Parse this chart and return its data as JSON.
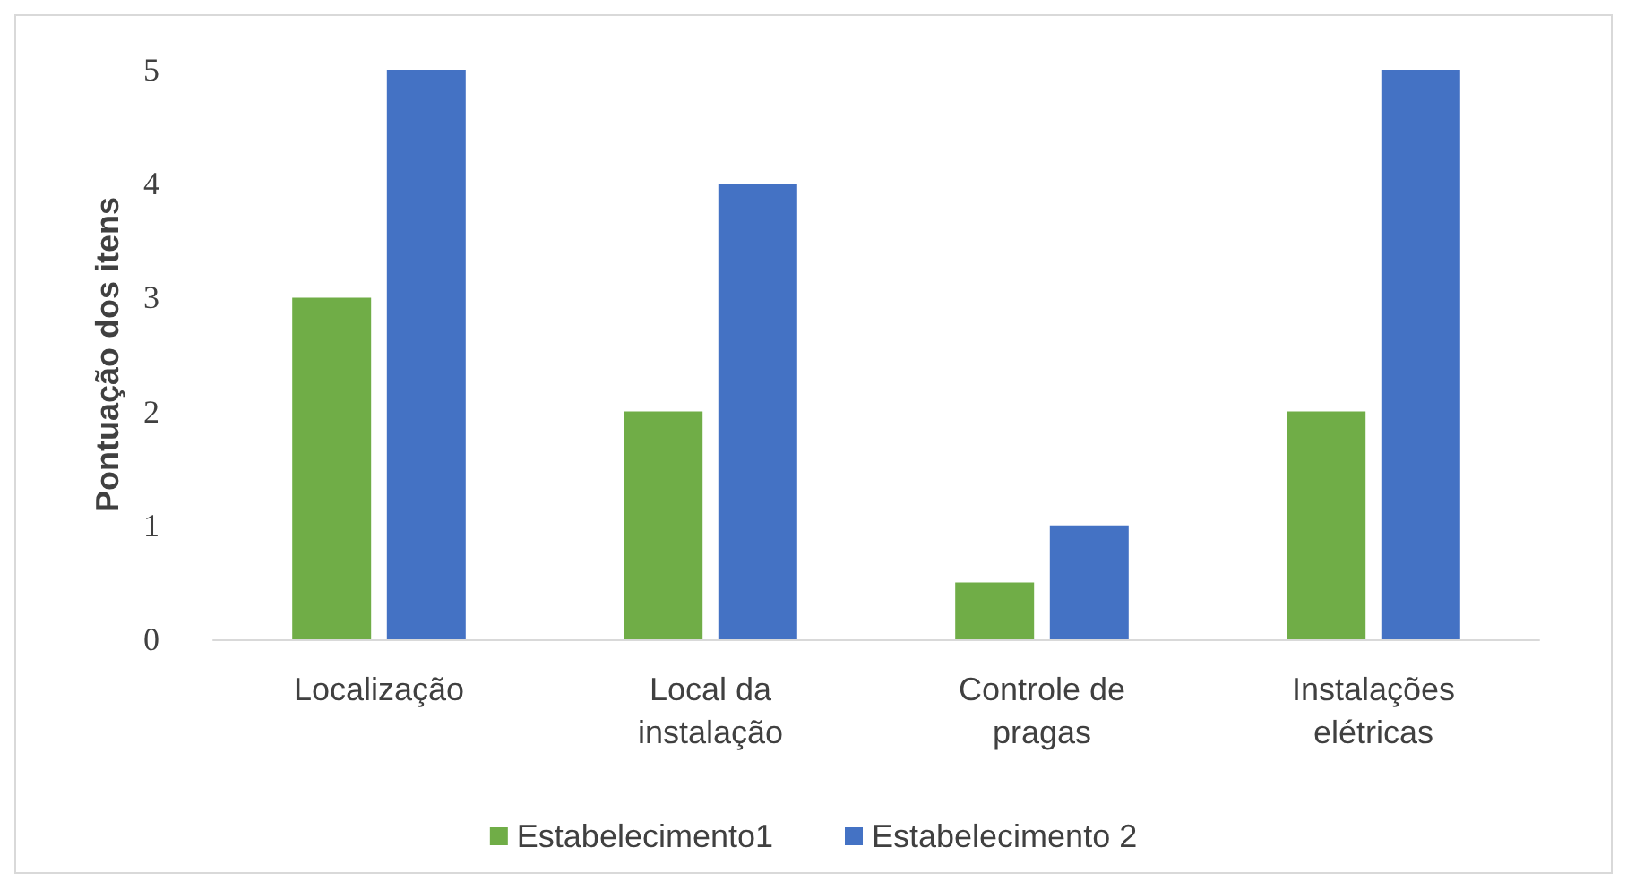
{
  "chart_data": {
    "type": "bar",
    "ylabel": "Pontuação dos itens",
    "categories": [
      "Localização",
      "Local da\ninstalação",
      "Controle de\npragas",
      "Instalações\nelétricas"
    ],
    "series": [
      {
        "name": "Estabelecimento1",
        "color": "#70ad47",
        "values": [
          3,
          2,
          0.5,
          2
        ]
      },
      {
        "name": "Estabelecimento 2",
        "color": "#4472c4",
        "values": [
          5,
          4,
          1,
          5
        ]
      }
    ],
    "ylim": [
      0,
      5
    ],
    "yticks": [
      0,
      1,
      2,
      3,
      4,
      5
    ],
    "grid": false,
    "legend": "bottom"
  }
}
